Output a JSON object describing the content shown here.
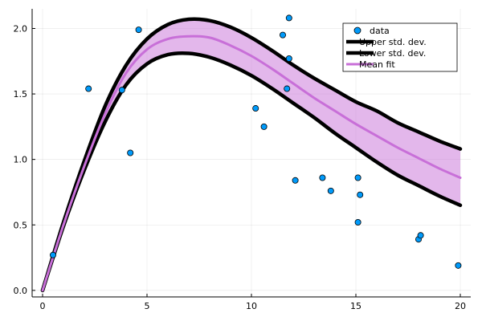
{
  "chart_data": {
    "type": "line",
    "title": "",
    "xlabel": "",
    "ylabel": "",
    "xlim": [
      -0.5,
      20.5
    ],
    "ylim": [
      -0.05,
      2.15
    ],
    "xticks": [
      0,
      5,
      10,
      15,
      20
    ],
    "xtick_labels": [
      "0",
      "5",
      "10",
      "15",
      "20"
    ],
    "yticks": [
      0.0,
      0.5,
      1.0,
      1.5,
      2.0
    ],
    "ytick_labels": [
      "0.0",
      "0.5",
      "1.0",
      "1.5",
      "2.0"
    ],
    "grid": true,
    "legend_position": "top-right",
    "scatter": {
      "name": "data",
      "color": "#009AFA",
      "x": [
        0.5,
        2.2,
        3.8,
        4.2,
        4.6,
        10.2,
        10.6,
        11.5,
        11.7,
        11.8,
        11.8,
        12.1,
        13.4,
        13.8,
        15.1,
        15.1,
        15.2,
        18.0,
        18.1,
        19.9
      ],
      "y": [
        0.27,
        1.54,
        1.53,
        1.05,
        1.99,
        1.39,
        1.25,
        1.95,
        1.54,
        1.77,
        2.08,
        0.84,
        0.86,
        0.76,
        0.86,
        0.52,
        0.73,
        0.39,
        0.42,
        0.19
      ]
    },
    "x": [
      0,
      1,
      2,
      3,
      4,
      5,
      6,
      7,
      8,
      9,
      10,
      11,
      12,
      13,
      14,
      15,
      16,
      17,
      18,
      19,
      20
    ],
    "series": [
      {
        "name": "Upper std. dev.",
        "color": "#000000",
        "values": [
          0.0,
          0.52,
          0.99,
          1.41,
          1.72,
          1.92,
          2.03,
          2.07,
          2.06,
          2.01,
          1.93,
          1.83,
          1.72,
          1.62,
          1.53,
          1.44,
          1.37,
          1.28,
          1.21,
          1.14,
          1.08
        ]
      },
      {
        "name": "Lower std. dev.",
        "color": "#000000",
        "values": [
          0.0,
          0.49,
          0.92,
          1.29,
          1.57,
          1.73,
          1.8,
          1.81,
          1.78,
          1.72,
          1.64,
          1.54,
          1.43,
          1.32,
          1.2,
          1.09,
          0.98,
          0.88,
          0.8,
          0.72,
          0.65
        ]
      },
      {
        "name": "Mean fit",
        "color": "#C86FD8",
        "values": [
          0.0,
          0.5,
          0.95,
          1.35,
          1.66,
          1.84,
          1.92,
          1.94,
          1.93,
          1.87,
          1.79,
          1.69,
          1.58,
          1.47,
          1.37,
          1.27,
          1.18,
          1.09,
          1.01,
          0.93,
          0.86
        ]
      }
    ],
    "band": {
      "color": "#C86FD8",
      "opacity": 0.5
    },
    "legend": {
      "items": [
        {
          "label": "data",
          "kind": "marker",
          "color": "#009AFA"
        },
        {
          "label": "Upper std. dev.",
          "kind": "line",
          "color": "#000000"
        },
        {
          "label": "Lower std. dev.",
          "kind": "line",
          "color": "#000000"
        },
        {
          "label": "Mean fit",
          "kind": "line",
          "color": "#C86FD8"
        }
      ]
    }
  }
}
